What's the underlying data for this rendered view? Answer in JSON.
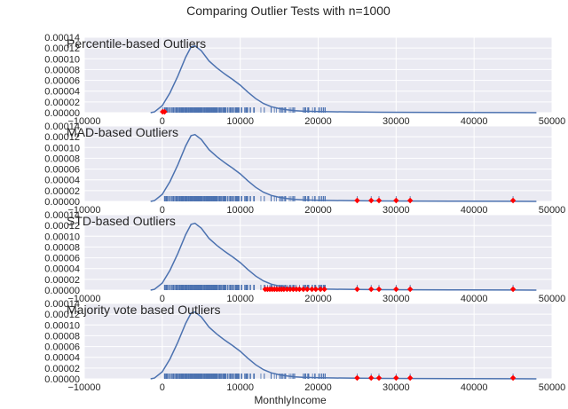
{
  "figure": {
    "suptitle": "Comparing Outlier Tests with n=1000",
    "xlabel": "MonthlyIncome"
  },
  "colors": {
    "background": "#ffffff",
    "panel": "#eaeaf2",
    "grid": "#ffffff",
    "kde_line": "#4c72b0",
    "rug": "#4c72b0",
    "outlier_marker": "#ff0000",
    "text": "#262626"
  },
  "chart_data": [
    {
      "type": "line",
      "title": "Percentile-based Outliers",
      "xlim": [
        -10000,
        50000
      ],
      "ylim": [
        0,
        0.00014
      ],
      "xticks": [
        -10000,
        0,
        10000,
        20000,
        30000,
        40000,
        50000
      ],
      "yticks": [
        0,
        2e-05,
        4e-05,
        6e-05,
        8e-05,
        0.0001,
        0.00012,
        0.00014
      ],
      "xtick_labels": [
        "−10000",
        "0",
        "10000",
        "20000",
        "30000",
        "40000",
        "50000"
      ],
      "ytick_labels": [
        "0.00000",
        "0.00002",
        "0.00004",
        "0.00006",
        "0.00008",
        "0.00010",
        "0.00012",
        "0.00014"
      ],
      "grid": true,
      "kde": {
        "x": [
          -1500,
          -1000,
          0,
          1000,
          2000,
          3000,
          3700,
          4200,
          5000,
          6000,
          7000,
          8000,
          9000,
          10000,
          11000,
          12000,
          13000,
          14000,
          15000,
          16000,
          17000,
          18000,
          20000,
          22000,
          25000,
          28000,
          32000,
          38000,
          45000,
          48000
        ],
        "y": [
          0,
          1.5e-06,
          1.3e-05,
          3.7e-05,
          6.8e-05,
          0.000103,
          0.000122,
          0.000124,
          0.000115,
          9.6e-05,
          8.3e-05,
          7.2e-05,
          6.2e-05,
          5.1e-05,
          3.8e-05,
          2.6e-05,
          1.7e-05,
          1.1e-05,
          7.5e-06,
          5.2e-06,
          3.8e-06,
          3e-06,
          2.2e-06,
          1.6e-06,
          1.2e-06,
          9e-07,
          7e-07,
          4e-07,
          2e-07,
          0
        ]
      },
      "outliers": [
        50,
        300
      ]
    },
    {
      "type": "line",
      "title": "MAD-based Outliers",
      "xlim": [
        -10000,
        50000
      ],
      "ylim": [
        0,
        0.00014
      ],
      "xticks": [
        -10000,
        0,
        10000,
        20000,
        30000,
        40000,
        50000
      ],
      "yticks": [
        0,
        2e-05,
        4e-05,
        6e-05,
        8e-05,
        0.0001,
        0.00012,
        0.00014
      ],
      "xtick_labels": [
        "−10000",
        "0",
        "10000",
        "20000",
        "30000",
        "40000",
        "50000"
      ],
      "ytick_labels": [
        "0.00000",
        "0.00002",
        "0.00004",
        "0.00006",
        "0.00008",
        "0.00010",
        "0.00012",
        "0.00014"
      ],
      "grid": true,
      "kde": {
        "x": [
          -1500,
          -1000,
          0,
          1000,
          2000,
          3000,
          3700,
          4200,
          5000,
          6000,
          7000,
          8000,
          9000,
          10000,
          11000,
          12000,
          13000,
          14000,
          15000,
          16000,
          17000,
          18000,
          20000,
          22000,
          25000,
          28000,
          32000,
          38000,
          45000,
          48000
        ],
        "y": [
          0,
          1.5e-06,
          1.3e-05,
          3.7e-05,
          6.8e-05,
          0.000103,
          0.000122,
          0.000124,
          0.000115,
          9.6e-05,
          8.3e-05,
          7.2e-05,
          6.2e-05,
          5.1e-05,
          3.8e-05,
          2.6e-05,
          1.7e-05,
          1.1e-05,
          7.5e-06,
          5.2e-06,
          3.8e-06,
          3e-06,
          2.2e-06,
          1.6e-06,
          1.2e-06,
          9e-07,
          7e-07,
          4e-07,
          2e-07,
          0
        ]
      },
      "outliers": [
        25000,
        26800,
        27800,
        30000,
        31800,
        45000
      ]
    },
    {
      "type": "line",
      "title": "STD-based Outliers",
      "xlim": [
        -10000,
        50000
      ],
      "ylim": [
        0,
        0.00014
      ],
      "xticks": [
        -10000,
        0,
        10000,
        20000,
        30000,
        40000,
        50000
      ],
      "yticks": [
        0,
        2e-05,
        4e-05,
        6e-05,
        8e-05,
        0.0001,
        0.00012,
        0.00014
      ],
      "xtick_labels": [
        "−10000",
        "0",
        "10000",
        "20000",
        "30000",
        "40000",
        "50000"
      ],
      "ytick_labels": [
        "0.00000",
        "0.00002",
        "0.00004",
        "0.00006",
        "0.00008",
        "0.00010",
        "0.00012",
        "0.00014"
      ],
      "grid": true,
      "kde": {
        "x": [
          -1500,
          -1000,
          0,
          1000,
          2000,
          3000,
          3700,
          4200,
          5000,
          6000,
          7000,
          8000,
          9000,
          10000,
          11000,
          12000,
          13000,
          14000,
          15000,
          16000,
          17000,
          18000,
          20000,
          22000,
          25000,
          28000,
          32000,
          38000,
          45000,
          48000
        ],
        "y": [
          0,
          1.5e-06,
          1.3e-05,
          3.7e-05,
          6.8e-05,
          0.000103,
          0.000122,
          0.000124,
          0.000115,
          9.6e-05,
          8.3e-05,
          7.2e-05,
          6.2e-05,
          5.1e-05,
          3.8e-05,
          2.6e-05,
          1.7e-05,
          1.1e-05,
          7.5e-06,
          5.2e-06,
          3.8e-06,
          3e-06,
          2.2e-06,
          1.6e-06,
          1.2e-06,
          9e-07,
          7e-07,
          4e-07,
          2e-07,
          0
        ]
      },
      "outliers": [
        13200,
        13500,
        13800,
        14100,
        14400,
        14700,
        15000,
        15300,
        15600,
        16000,
        16400,
        16800,
        17200,
        17600,
        18100,
        18600,
        19200,
        19700,
        20300,
        20800,
        25000,
        26800,
        27800,
        30000,
        31800,
        45000
      ]
    },
    {
      "type": "line",
      "title": "Majority vote based Outliers",
      "xlim": [
        -10000,
        50000
      ],
      "ylim": [
        0,
        0.00014
      ],
      "xticks": [
        -10000,
        0,
        10000,
        20000,
        30000,
        40000,
        50000
      ],
      "yticks": [
        0,
        2e-05,
        4e-05,
        6e-05,
        8e-05,
        0.0001,
        0.00012,
        0.00014
      ],
      "xtick_labels": [
        "−10000",
        "0",
        "10000",
        "20000",
        "30000",
        "40000",
        "50000"
      ],
      "ytick_labels": [
        "0.00000",
        "0.00002",
        "0.00004",
        "0.00006",
        "0.00008",
        "0.00010",
        "0.00012",
        "0.00014"
      ],
      "grid": true,
      "kde": {
        "x": [
          -1500,
          -1000,
          0,
          1000,
          2000,
          3000,
          3700,
          4200,
          5000,
          6000,
          7000,
          8000,
          9000,
          10000,
          11000,
          12000,
          13000,
          14000,
          15000,
          16000,
          17000,
          18000,
          20000,
          22000,
          25000,
          28000,
          32000,
          38000,
          45000,
          48000
        ],
        "y": [
          0,
          1.5e-06,
          1.3e-05,
          3.7e-05,
          6.8e-05,
          0.000103,
          0.000122,
          0.000124,
          0.000115,
          9.6e-05,
          8.3e-05,
          7.2e-05,
          6.2e-05,
          5.1e-05,
          3.8e-05,
          2.6e-05,
          1.7e-05,
          1.1e-05,
          7.5e-06,
          5.2e-06,
          3.8e-06,
          3e-06,
          2.2e-06,
          1.6e-06,
          1.2e-06,
          9e-07,
          7e-07,
          4e-07,
          2e-07,
          0
        ]
      },
      "outliers": [
        25000,
        26800,
        27800,
        30000,
        31800,
        45000
      ]
    }
  ]
}
